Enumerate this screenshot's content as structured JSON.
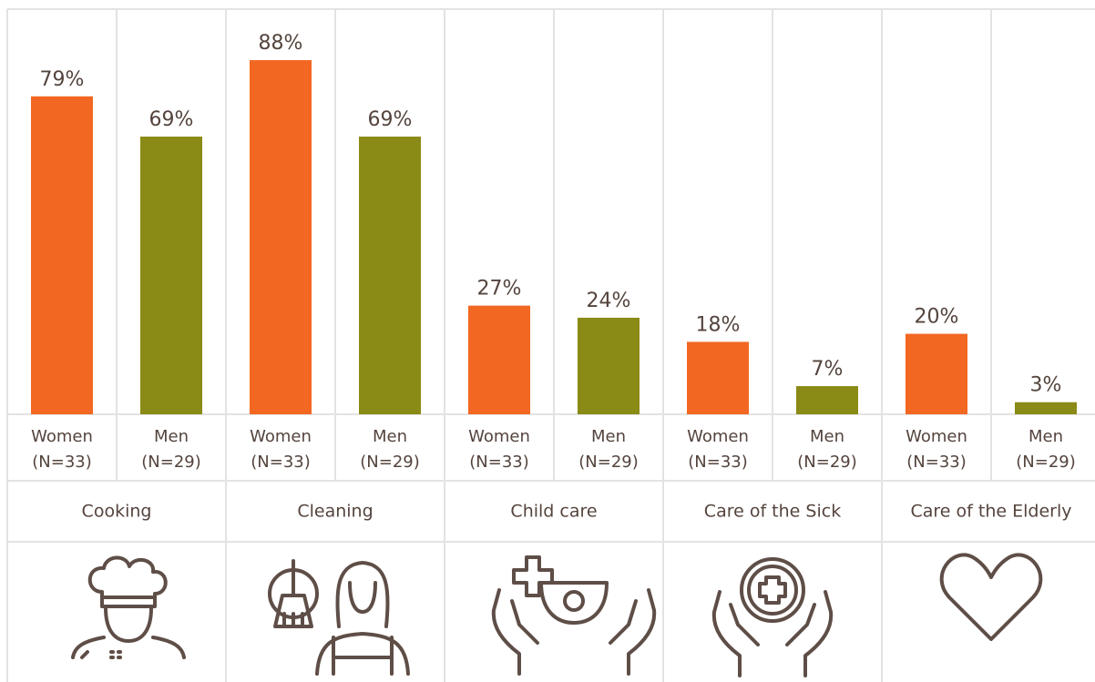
{
  "chart_data": {
    "type": "bar",
    "categories": [
      "Cooking",
      "Cleaning",
      "Child care",
      "Care of the Sick",
      "Care of the Elderly"
    ],
    "series": [
      {
        "name": "Women",
        "sample": "(N=33)",
        "color": "#f26722",
        "values": [
          79,
          88,
          27,
          18,
          20
        ],
        "value_labels": [
          "79%",
          "88%",
          "27%",
          "18%",
          "20%"
        ]
      },
      {
        "name": "Men",
        "sample": "(N=29)",
        "color": "#8a8a16",
        "values": [
          69,
          69,
          24,
          7,
          3
        ],
        "value_labels": [
          "69%",
          "69%",
          "24%",
          "7%",
          "3%"
        ]
      }
    ]
  }
}
